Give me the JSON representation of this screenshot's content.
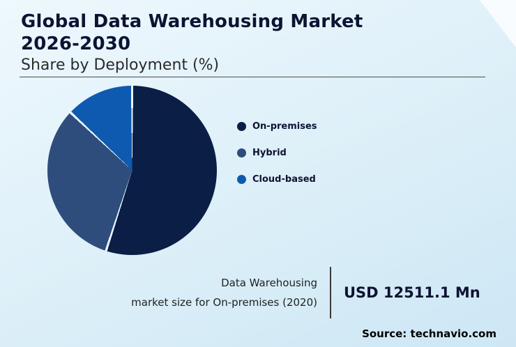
{
  "header": {
    "title_line1": "Global Data Warehousing Market",
    "title_line2": "2026-2030",
    "subtitle": "Share by Deployment (%)"
  },
  "chart_data": {
    "type": "pie",
    "title": "Global Data Warehousing Market 2026-2030",
    "subtitle": "Share by Deployment (%)",
    "units": "%",
    "legend_position": "right",
    "start_angle_deg": 0,
    "slices": [
      {
        "label": "On-premises",
        "value": 55,
        "color": "#0a1e46"
      },
      {
        "label": "Hybrid",
        "value": 32,
        "color": "#2e4d7d"
      },
      {
        "label": "Cloud-based",
        "value": 13,
        "color": "#0e5ab0"
      }
    ]
  },
  "footer": {
    "stat_label_line1": "Data Warehousing",
    "stat_label_line2": "market size for On-premises (2020)",
    "stat_value": "USD 12511.1 Mn",
    "source": "Source: technavio.com"
  }
}
